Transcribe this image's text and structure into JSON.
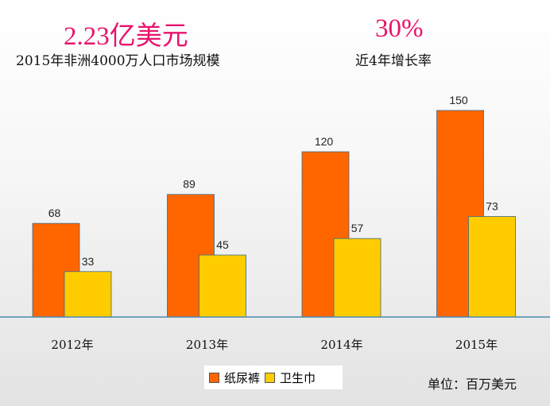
{
  "headline": {
    "market_value": "2.23亿美元",
    "market_label": "2015年非洲4000万人口市场规模",
    "growth_value": "30%",
    "growth_label": "近4年增长率"
  },
  "chart_data": {
    "type": "bar",
    "categories": [
      "2012年",
      "2013年",
      "2014年",
      "2015年"
    ],
    "series": [
      {
        "name": "纸尿裤",
        "values": [
          68,
          89,
          120,
          150
        ],
        "color": "#ff6600"
      },
      {
        "name": "卫生巾",
        "values": [
          33,
          45,
          57,
          73
        ],
        "color": "#ffcc00"
      }
    ],
    "ylim": [
      0,
      150
    ],
    "unit": "单位：百万美元",
    "grid": false,
    "legend": "bottom-center"
  }
}
